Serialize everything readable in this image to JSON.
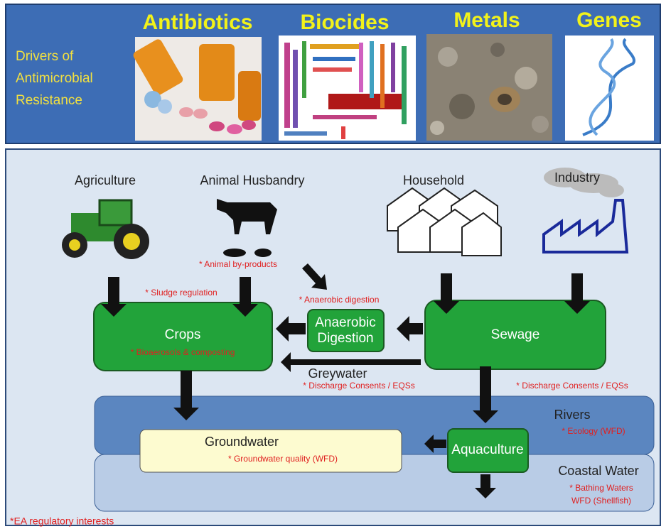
{
  "banner": {
    "subtitle": [
      "Drivers of",
      "Antimicrobial",
      "Resistance"
    ],
    "drivers": [
      "Antibiotics",
      "Biocides",
      "Metals",
      "Genes"
    ]
  },
  "sources": [
    "Agriculture",
    "Animal Husbandry",
    "Household",
    "Industry"
  ],
  "boxes": {
    "crops": "Crops",
    "anaerobic": [
      "Anaerobic",
      "Digestion"
    ],
    "sewage": "Sewage",
    "aquaculture": "Aquaculture",
    "groundwater": "Groundwater"
  },
  "water": {
    "rivers": "Rivers",
    "coastal": "Coastal Water",
    "greywater": "Greywater"
  },
  "notes": {
    "animal_byproducts": "* Animal by-products",
    "sludge": "* Sludge regulation",
    "anaerobic": "* Anaerobic digestion",
    "bioaerosols": "* Bioaerosols & composting",
    "discharge_left": "* Discharge Consents /  EQSs",
    "discharge_right": "* Discharge Consents /  EQSs",
    "ecology": "* Ecology (WFD)",
    "groundwater": "* Groundwater quality (WFD)",
    "bathing": "* Bathing Waters",
    "shellfish": "WFD (Shellfish)"
  },
  "footnote": "*EA regulatory interests"
}
